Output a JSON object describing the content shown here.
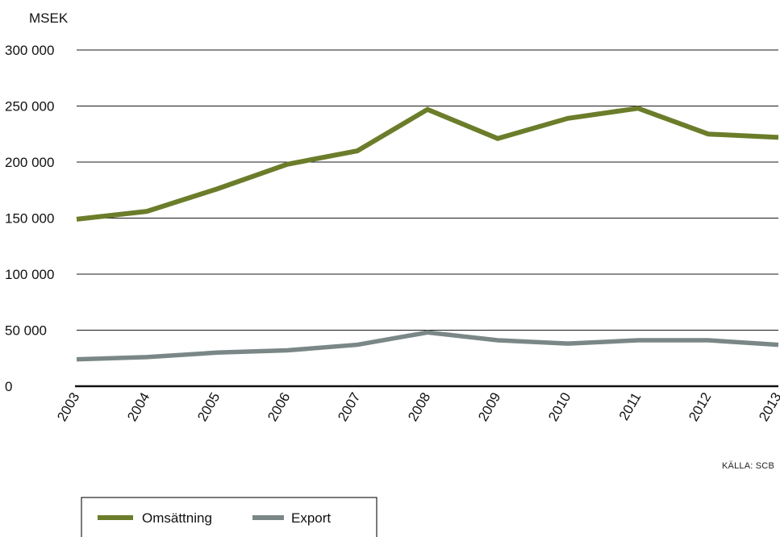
{
  "chart_data": {
    "type": "line",
    "unit_label": "MSEK",
    "x": [
      "2003",
      "2004",
      "2005",
      "2006",
      "2007",
      "2008",
      "2009",
      "2010",
      "2011",
      "2012",
      "2013"
    ],
    "y_ticks": [
      0,
      50000,
      100000,
      150000,
      200000,
      250000,
      300000
    ],
    "y_tick_labels": [
      "0",
      "50 000",
      "100 000",
      "150 000",
      "200 000",
      "250 000",
      "300 000"
    ],
    "ylim": [
      0,
      300000
    ],
    "grid": true,
    "legend_position": "bottom-left",
    "series": [
      {
        "name": "Omsättning",
        "color": "#6b7d2a",
        "values": [
          149000,
          156000,
          176000,
          198000,
          210000,
          247000,
          221000,
          239000,
          248000,
          225000,
          222000
        ]
      },
      {
        "name": "Export",
        "color": "#7b8787",
        "values": [
          24000,
          26000,
          30000,
          32000,
          37000,
          48000,
          41000,
          38000,
          41000,
          41000,
          37000
        ]
      }
    ],
    "source": "KÄLLA: SCB"
  }
}
